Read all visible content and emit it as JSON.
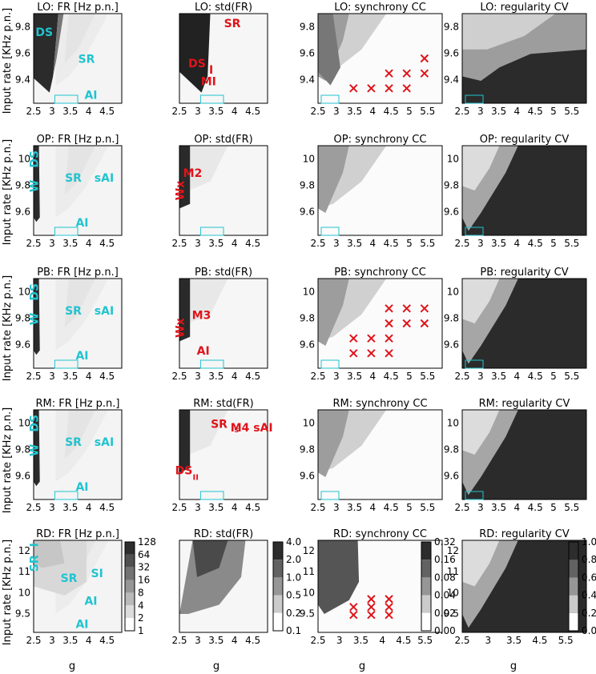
{
  "figure": {
    "ylabel": "Input rate [KHz p.n.]",
    "xlabel": "g"
  },
  "colors": {
    "cyan_annotation": "#22c3cf",
    "red_annotation": "#e0141a",
    "grey_scale": [
      "#ffffff",
      "#f2f2f2",
      "#e3e3e3",
      "#cfcfcf",
      "#b7b7b7",
      "#9a9a9a",
      "#777777",
      "#505050",
      "#2b2b2b"
    ]
  },
  "rows": [
    {
      "model": "LO",
      "titles": [
        "LO: FR [Hz p.n.]",
        "LO: std(FR)",
        "LO: synchrony CC",
        "LO: regularity CV"
      ],
      "yticks": [
        "9.4",
        "9.6",
        "9.8"
      ],
      "xticks": [
        "2.5",
        "3",
        "3.5",
        "4",
        "4.5",
        "5",
        "5.5"
      ],
      "xticks_short": [
        "2.5",
        "3",
        "3.5",
        "4",
        "4.5"
      ],
      "annotations": {
        "p0": [
          "DS",
          "SR",
          "AI"
        ],
        "p1": [
          "SR",
          "DS",
          "I",
          "MI"
        ]
      }
    },
    {
      "model": "OP",
      "titles": [
        "OP: FR [Hz p.n.]",
        "OP: std(FR)",
        "OP: synchrony CC",
        "OP: regularity CV"
      ],
      "yticks": [
        "9.6",
        "9.8",
        "10"
      ],
      "xticks": [
        "2.5",
        "3",
        "3.5",
        "4",
        "4.5",
        "5",
        "5.5"
      ],
      "xticks_short": [
        "2.5",
        "3",
        "3.5",
        "4",
        "4.5"
      ],
      "annotations": {
        "p0": [
          "DS",
          "W",
          "SR",
          "sAI",
          "AI"
        ],
        "p1": [
          "M2",
          "Wx"
        ]
      }
    },
    {
      "model": "PB",
      "titles": [
        "PB: FR [Hz p.n.]",
        "PB: std(FR)",
        "PB: synchrony CC",
        "PB: regularity CV"
      ],
      "yticks": [
        "9.6",
        "9.8",
        "10"
      ],
      "xticks": [
        "2.5",
        "3",
        "3.5",
        "4",
        "4.5",
        "5",
        "5.5"
      ],
      "xticks_short": [
        "2.5",
        "3",
        "3.5",
        "4",
        "4.5"
      ],
      "annotations": {
        "p0": [
          "DS",
          "W",
          "SR",
          "sAI",
          "AI"
        ],
        "p1": [
          "M3",
          "Wx",
          "AI"
        ]
      }
    },
    {
      "model": "RM",
      "titles": [
        "RM: FR [Hz p.n.]",
        "RM: std(FR)",
        "RM:  synchrony CC",
        "RM: regularity CV"
      ],
      "yticks": [
        "9.6",
        "9.8",
        "10"
      ],
      "xticks": [
        "2.5",
        "3",
        "3.5",
        "4",
        "4.5",
        "5",
        "5.5"
      ],
      "xticks_short": [
        "2.5",
        "3",
        "3.5",
        "4",
        "4.5"
      ],
      "annotations": {
        "p0": [
          "DS",
          "W",
          "SR",
          "sAI",
          "AI"
        ],
        "p1": [
          "SR",
          "s",
          "M4 sAI",
          "DS",
          "II"
        ]
      }
    },
    {
      "model": "RD",
      "titles": [
        "RD: FR [Hz p.n.]",
        "RD: std(FR)",
        "RD: synchrony CC",
        "RD: regularity CV"
      ],
      "yticks": [
        "9.5",
        "10",
        "11",
        "12"
      ],
      "xticks": [
        "2.5",
        "3",
        "3.5",
        "4",
        "4.5",
        "5.5"
      ],
      "xticks_short": [
        "2.5",
        "3",
        "3.5",
        "4",
        "4.5"
      ],
      "xticks_cv": [
        "2.5",
        "3",
        "3.5",
        "4.5",
        "5.5"
      ],
      "annotations": {
        "p0": [
          "SR",
          "I",
          "SI",
          "SR",
          "AI",
          "AI"
        ]
      }
    }
  ],
  "colorbars": [
    {
      "ticks": [
        "128",
        "64",
        "32",
        "16",
        "8",
        "4",
        "2",
        "1"
      ]
    },
    {
      "ticks": [
        "4.0",
        "2.0",
        "1.0",
        "0.5",
        "0.2",
        "0.1"
      ]
    },
    {
      "ticks": [
        "0.32",
        "0.16",
        "0.08",
        "0.04",
        "0.02",
        "0.00"
      ]
    },
    {
      "ticks": [
        "1.0",
        "0.8",
        "0.6",
        "0.4",
        "0.2",
        "0.0"
      ]
    }
  ],
  "chart_data": [
    {
      "type": "heatmap",
      "note_model": "LO",
      "panels": [
        "FR",
        "std(FR)",
        "synchrony CC",
        "regularity CV"
      ],
      "x_range": [
        2.5,
        6.0
      ],
      "y_range": [
        9.3,
        9.9
      ],
      "cross_markers_cc": [
        [
          3.5,
          9.4
        ],
        [
          4,
          9.4
        ],
        [
          4.5,
          9.4
        ],
        [
          5,
          9.4
        ],
        [
          4.5,
          9.5
        ],
        [
          5,
          9.5
        ],
        [
          5.5,
          9.5
        ],
        [
          5.5,
          9.6
        ]
      ]
    },
    {
      "type": "heatmap",
      "note_model": "OP",
      "panels": [
        "FR",
        "std(FR)",
        "synchrony CC",
        "regularity CV"
      ],
      "x_range": [
        2.5,
        6.0
      ],
      "y_range": [
        9.5,
        10.1
      ]
    },
    {
      "type": "heatmap",
      "note_model": "PB",
      "panels": [
        "FR",
        "std(FR)",
        "synchrony CC",
        "regularity CV"
      ],
      "x_range": [
        2.5,
        6.0
      ],
      "y_range": [
        9.5,
        10.1
      ],
      "cross_markers_cc": [
        [
          3.5,
          9.6
        ],
        [
          4,
          9.6
        ],
        [
          4.5,
          9.6
        ],
        [
          3.5,
          9.7
        ],
        [
          4,
          9.7
        ],
        [
          4.5,
          9.7
        ],
        [
          4.5,
          9.8
        ],
        [
          5,
          9.8
        ],
        [
          5.5,
          9.8
        ],
        [
          4.5,
          9.9
        ],
        [
          5,
          9.9
        ],
        [
          5.5,
          9.9
        ]
      ]
    },
    {
      "type": "heatmap",
      "note_model": "RM",
      "panels": [
        "FR",
        "std(FR)",
        "synchrony CC",
        "regularity CV"
      ],
      "x_range": [
        2.5,
        6.0
      ],
      "y_range": [
        9.5,
        10.1
      ]
    },
    {
      "type": "heatmap",
      "note_model": "RD",
      "panels": [
        "FR",
        "std(FR)",
        "synchrony CC",
        "regularity CV"
      ],
      "x_range": [
        2.5,
        6.0
      ],
      "y_range": [
        9.2,
        12.1
      ],
      "cross_markers_cc": [
        [
          3.5,
          9.75
        ],
        [
          4,
          9.75
        ],
        [
          4.5,
          9.75
        ],
        [
          3.5,
          10
        ],
        [
          4,
          10
        ],
        [
          4.5,
          10
        ],
        [
          4,
          10.25
        ],
        [
          4.5,
          10.25
        ]
      ]
    }
  ]
}
